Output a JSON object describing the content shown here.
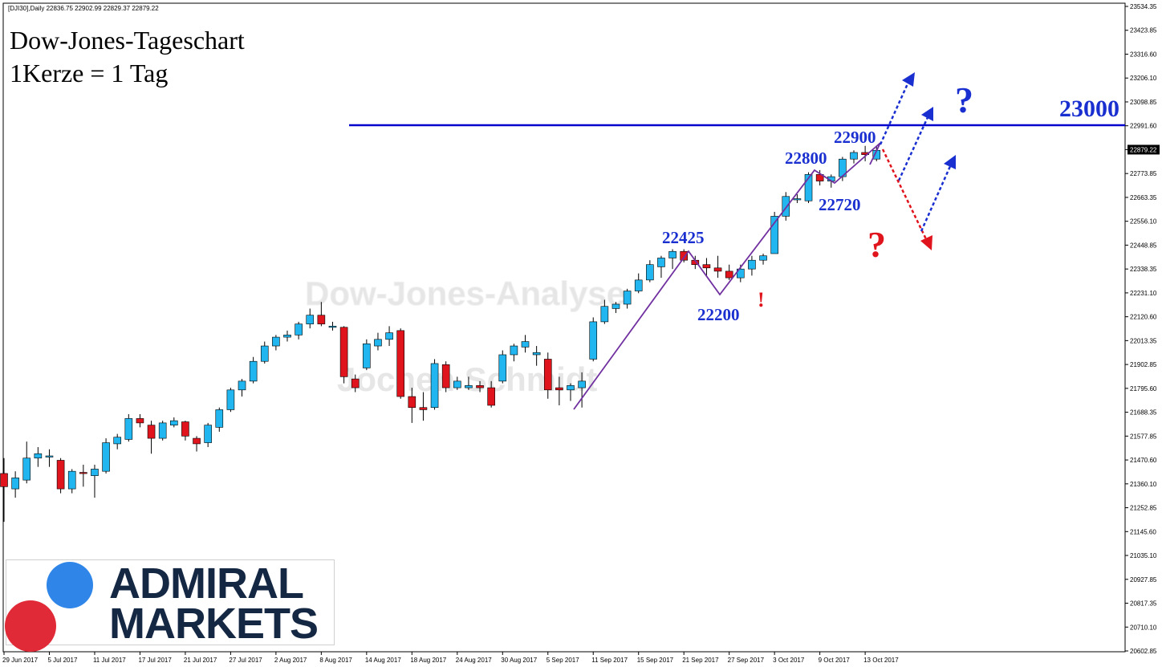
{
  "window": {
    "header": "[DJI30],Daily  22836.75 22902.99 22829.37 22879.22"
  },
  "title_lines": [
    "Dow-Jones-Tageschart",
    "1Kerze = 1 Tag"
  ],
  "watermarks": [
    "Dow-Jones-Analyse",
    "Jochen Schmidt"
  ],
  "colors": {
    "bull": "#21b6ef",
    "bear": "#e0141c",
    "level_line": "#0000cc",
    "label_blue": "#1a2fd0",
    "label_red": "#e0141c",
    "trend_line": "#7030a0",
    "logo_text": "#142743",
    "logo_blue": "#2f86e8",
    "logo_red": "#e02a37"
  },
  "logo": {
    "line1": "ADMIRAL",
    "line2": "MARKETS"
  },
  "annotations": {
    "level": "23000",
    "p22425": "22425",
    "p22200": "22200",
    "p22800": "22800",
    "p22720": "22720",
    "p22900": "22900",
    "q_blue": "?",
    "q_red": "?",
    "excl": "!"
  },
  "price_axis": {
    "labels": [
      "23534.35",
      "23423.85",
      "23316.60",
      "23206.10",
      "23098.85",
      "22991.60",
      "22879.22",
      "22773.85",
      "22663.35",
      "22556.10",
      "22448.85",
      "22338.35",
      "22231.10",
      "22120.60",
      "22013.35",
      "21902.85",
      "21795.60",
      "21688.35",
      "21577.85",
      "21470.60",
      "21360.10",
      "21252.85",
      "21145.60",
      "21035.10",
      "20927.85",
      "20817.35",
      "20710.10",
      "20602.85"
    ],
    "current": "22879.22"
  },
  "date_axis": [
    "29 Jun 2017",
    "5 Jul 2017",
    "11 Jul 2017",
    "17 Jul 2017",
    "21 Jul 2017",
    "27 Jul 2017",
    "2 Aug 2017",
    "8 Aug 2017",
    "14 Aug 2017",
    "18 Aug 2017",
    "24 Aug 2017",
    "30 Aug 2017",
    "5 Sep 2017",
    "11 Sep 2017",
    "15 Sep 2017",
    "21 Sep 2017",
    "27 Sep 2017",
    "3 Oct 2017",
    "9 Oct 2017",
    "13 Oct 2017"
  ],
  "chart_data": {
    "type": "candlestick",
    "symbol": "DJI30",
    "timeframe": "Daily",
    "ylim": [
      20602.85,
      23534.35
    ],
    "resistance_level": 23000,
    "candles": [
      {
        "o": 21410,
        "h": 21480,
        "l": 21190,
        "c": 21350
      },
      {
        "o": 21340,
        "h": 21420,
        "l": 21300,
        "c": 21390
      },
      {
        "o": 21380,
        "h": 21555,
        "l": 21365,
        "c": 21480
      },
      {
        "o": 21480,
        "h": 21530,
        "l": 21440,
        "c": 21500
      },
      {
        "o": 21490,
        "h": 21520,
        "l": 21440,
        "c": 21490
      },
      {
        "o": 21470,
        "h": 21480,
        "l": 21320,
        "c": 21340
      },
      {
        "o": 21340,
        "h": 21430,
        "l": 21320,
        "c": 21420
      },
      {
        "o": 21415,
        "h": 21450,
        "l": 21350,
        "c": 21410
      },
      {
        "o": 21400,
        "h": 21450,
        "l": 21300,
        "c": 21430
      },
      {
        "o": 21420,
        "h": 21570,
        "l": 21410,
        "c": 21550
      },
      {
        "o": 21545,
        "h": 21590,
        "l": 21520,
        "c": 21575
      },
      {
        "o": 21565,
        "h": 21680,
        "l": 21555,
        "c": 21660
      },
      {
        "o": 21660,
        "h": 21680,
        "l": 21620,
        "c": 21640
      },
      {
        "o": 21630,
        "h": 21650,
        "l": 21500,
        "c": 21570
      },
      {
        "o": 21570,
        "h": 21650,
        "l": 21560,
        "c": 21640
      },
      {
        "o": 21630,
        "h": 21665,
        "l": 21620,
        "c": 21650
      },
      {
        "o": 21645,
        "h": 21650,
        "l": 21560,
        "c": 21580
      },
      {
        "o": 21570,
        "h": 21580,
        "l": 21510,
        "c": 21545
      },
      {
        "o": 21550,
        "h": 21640,
        "l": 21530,
        "c": 21630
      },
      {
        "o": 21620,
        "h": 21710,
        "l": 21600,
        "c": 21700
      },
      {
        "o": 21700,
        "h": 21800,
        "l": 21690,
        "c": 21790
      },
      {
        "o": 21790,
        "h": 21840,
        "l": 21760,
        "c": 21830
      },
      {
        "o": 21830,
        "h": 21940,
        "l": 21820,
        "c": 21920
      },
      {
        "o": 21920,
        "h": 22010,
        "l": 21910,
        "c": 21990
      },
      {
        "o": 21990,
        "h": 22040,
        "l": 21970,
        "c": 22030
      },
      {
        "o": 22030,
        "h": 22060,
        "l": 22010,
        "c": 22040
      },
      {
        "o": 22040,
        "h": 22100,
        "l": 22020,
        "c": 22090
      },
      {
        "o": 22090,
        "h": 22160,
        "l": 22070,
        "c": 22130
      },
      {
        "o": 22130,
        "h": 22190,
        "l": 22080,
        "c": 22090
      },
      {
        "o": 22080,
        "h": 22100,
        "l": 22060,
        "c": 22080
      },
      {
        "o": 22075,
        "h": 22080,
        "l": 21820,
        "c": 21850
      },
      {
        "o": 21840,
        "h": 21860,
        "l": 21780,
        "c": 21800
      },
      {
        "o": 21890,
        "h": 22020,
        "l": 21880,
        "c": 22000
      },
      {
        "o": 21990,
        "h": 22050,
        "l": 21970,
        "c": 22020
      },
      {
        "o": 22020,
        "h": 22080,
        "l": 21990,
        "c": 22050
      },
      {
        "o": 22060,
        "h": 22070,
        "l": 21750,
        "c": 21760
      },
      {
        "o": 21760,
        "h": 21800,
        "l": 21640,
        "c": 21710
      },
      {
        "o": 21710,
        "h": 21780,
        "l": 21650,
        "c": 21700
      },
      {
        "o": 21710,
        "h": 21930,
        "l": 21700,
        "c": 21910
      },
      {
        "o": 21905,
        "h": 21920,
        "l": 21780,
        "c": 21800
      },
      {
        "o": 21800,
        "h": 21850,
        "l": 21790,
        "c": 21830
      },
      {
        "o": 21800,
        "h": 21850,
        "l": 21790,
        "c": 21810
      },
      {
        "o": 21810,
        "h": 21830,
        "l": 21780,
        "c": 21800
      },
      {
        "o": 21800,
        "h": 21830,
        "l": 21710,
        "c": 21720
      },
      {
        "o": 21830,
        "h": 21970,
        "l": 21820,
        "c": 21950
      },
      {
        "o": 21950,
        "h": 22000,
        "l": 21920,
        "c": 21990
      },
      {
        "o": 21985,
        "h": 22040,
        "l": 21960,
        "c": 22010
      },
      {
        "o": 21950,
        "h": 21990,
        "l": 21900,
        "c": 21960
      },
      {
        "o": 21930,
        "h": 21960,
        "l": 21750,
        "c": 21790
      },
      {
        "o": 21800,
        "h": 21850,
        "l": 21720,
        "c": 21790
      },
      {
        "o": 21790,
        "h": 21820,
        "l": 21740,
        "c": 21810
      },
      {
        "o": 21800,
        "h": 21870,
        "l": 21710,
        "c": 21830
      },
      {
        "o": 21930,
        "h": 22120,
        "l": 21920,
        "c": 22100
      },
      {
        "o": 22100,
        "h": 22200,
        "l": 22090,
        "c": 22170
      },
      {
        "o": 22160,
        "h": 22190,
        "l": 22140,
        "c": 22180
      },
      {
        "o": 22180,
        "h": 22250,
        "l": 22160,
        "c": 22240
      },
      {
        "o": 22240,
        "h": 22320,
        "l": 22230,
        "c": 22290
      },
      {
        "o": 22290,
        "h": 22380,
        "l": 22280,
        "c": 22360
      },
      {
        "o": 22350,
        "h": 22400,
        "l": 22300,
        "c": 22390
      },
      {
        "o": 22390,
        "h": 22430,
        "l": 22340,
        "c": 22420
      },
      {
        "o": 22420,
        "h": 22430,
        "l": 22370,
        "c": 22380
      },
      {
        "o": 22380,
        "h": 22400,
        "l": 22340,
        "c": 22360
      },
      {
        "o": 22360,
        "h": 22390,
        "l": 22310,
        "c": 22345
      },
      {
        "o": 22345,
        "h": 22400,
        "l": 22300,
        "c": 22330
      },
      {
        "o": 22330,
        "h": 22360,
        "l": 22290,
        "c": 22300
      },
      {
        "o": 22300,
        "h": 22360,
        "l": 22280,
        "c": 22340
      },
      {
        "o": 22340,
        "h": 22400,
        "l": 22310,
        "c": 22380
      },
      {
        "o": 22380,
        "h": 22410,
        "l": 22360,
        "c": 22400
      },
      {
        "o": 22410,
        "h": 22600,
        "l": 22410,
        "c": 22580
      },
      {
        "o": 22580,
        "h": 22690,
        "l": 22560,
        "c": 22670
      },
      {
        "o": 22660,
        "h": 22680,
        "l": 22640,
        "c": 22660
      },
      {
        "o": 22650,
        "h": 22780,
        "l": 22640,
        "c": 22770
      },
      {
        "o": 22770,
        "h": 22790,
        "l": 22720,
        "c": 22740
      },
      {
        "o": 22740,
        "h": 22770,
        "l": 22710,
        "c": 22760
      },
      {
        "o": 22760,
        "h": 22850,
        "l": 22740,
        "c": 22840
      },
      {
        "o": 22840,
        "h": 22880,
        "l": 22820,
        "c": 22870
      },
      {
        "o": 22870,
        "h": 22900,
        "l": 22830,
        "c": 22860
      },
      {
        "o": 22840,
        "h": 22900,
        "l": 22830,
        "c": 22880
      }
    ],
    "swing_points": [
      22425,
      22200,
      22800,
      22720,
      22900
    ]
  }
}
